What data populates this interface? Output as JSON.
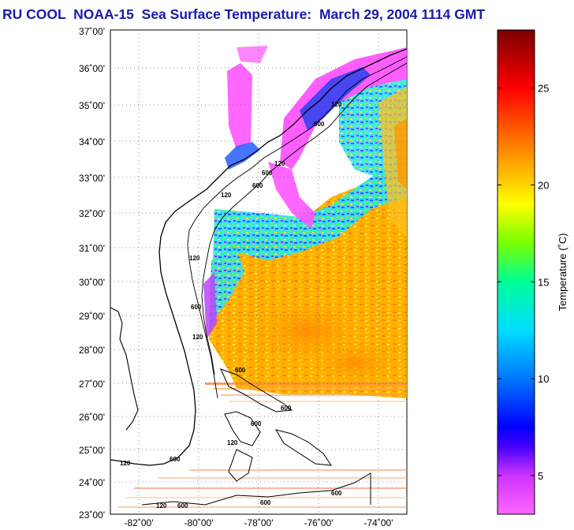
{
  "title": "RU COOL  NOAA-15  Sea Surface Temperature:  March 29, 2004 1114 GMT",
  "map": {
    "lat_labels": [
      "37˚00'",
      "36˚00'",
      "35˚00'",
      "34˚00'",
      "33˚00'",
      "32˚00'",
      "31˚00'",
      "30˚00'",
      "29˚00'",
      "28˚00'",
      "27˚00'",
      "26˚00'",
      "25˚00'",
      "24˚00'",
      "23˚00'"
    ],
    "lon_labels": [
      "-82˚00'",
      "-80˚00'",
      "-78˚00'",
      "-76˚00'",
      "-74˚00'"
    ],
    "contour_labels": [
      "120",
      "600",
      "600",
      "120",
      "600",
      "120",
      "120",
      "600",
      "120",
      "600",
      "600",
      "120",
      "600",
      "600",
      "120",
      "600",
      "600",
      "600",
      "120"
    ],
    "colorbar": {
      "label": "Temperature (˚C)",
      "ticks": [
        "25",
        "20",
        "15",
        "10",
        "5"
      ],
      "tick_values": [
        25,
        20,
        15,
        10,
        5
      ],
      "range": [
        3,
        28
      ]
    }
  },
  "colors": {
    "title": "#1a1aaa",
    "coastline": "#000000",
    "grid": "#666666"
  }
}
